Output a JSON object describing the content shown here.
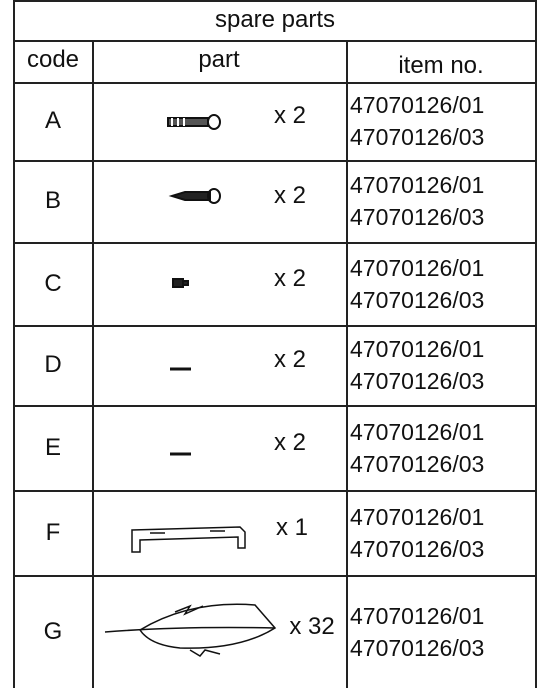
{
  "header": {
    "title": "spare parts"
  },
  "columns": [
    "code",
    "part",
    "item no."
  ],
  "rows": [
    {
      "code": "A",
      "quantity": "x 2",
      "item_numbers": [
        "47070126/01",
        "47070126/03"
      ]
    },
    {
      "code": "B",
      "quantity": "x 2",
      "item_numbers": [
        "47070126/01",
        "47070126/03"
      ]
    },
    {
      "code": "C",
      "quantity": "x 2",
      "item_numbers": [
        "47070126/01",
        "47070126/03"
      ]
    },
    {
      "code": "D",
      "quantity": "x 2",
      "item_numbers": [
        "47070126/01",
        "47070126/03"
      ]
    },
    {
      "code": "E",
      "quantity": "x 2",
      "item_numbers": [
        "47070126/01",
        "47070126/03"
      ]
    },
    {
      "code": "F",
      "quantity": "x 1",
      "item_numbers": [
        "47070126/01",
        "47070126/03"
      ]
    },
    {
      "code": "G",
      "quantity": "x 32",
      "item_numbers": [
        "47070126/01",
        "47070126/03"
      ]
    }
  ]
}
